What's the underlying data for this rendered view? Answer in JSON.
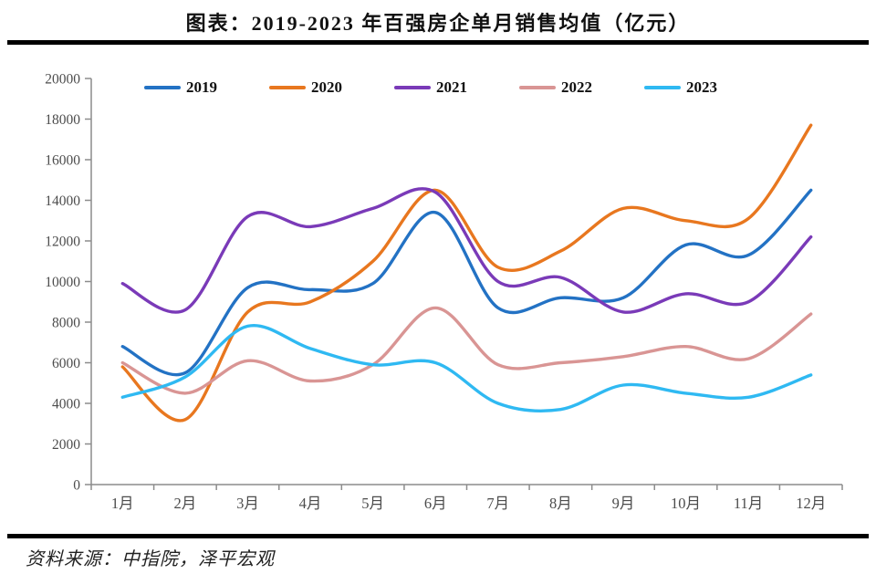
{
  "page": {
    "title": "图表：2019-2023 年百强房企单月销售均值（亿元）"
  },
  "source": {
    "text": "资料来源：中指院，泽平宏观"
  },
  "chart_data": {
    "type": "line",
    "title": "图表：2019-2023 年百强房企单月销售均值（亿元）",
    "unit": "亿元",
    "categories": [
      "1月",
      "2月",
      "3月",
      "4月",
      "5月",
      "6月",
      "7月",
      "8月",
      "9月",
      "10月",
      "11月",
      "12月"
    ],
    "xlabel": "",
    "ylabel": "",
    "ylim": [
      0,
      20000
    ],
    "ystep": 2000,
    "yticks": [
      0,
      2000,
      4000,
      6000,
      8000,
      10000,
      12000,
      14000,
      16000,
      18000,
      20000
    ],
    "grid": false,
    "legend_position": "top",
    "axis_color": "#8c8c8c",
    "tick_label_color": "#4c4c4c",
    "series": [
      {
        "name": "2019",
        "color": "#2372C4",
        "values": [
          6800,
          5500,
          9700,
          9600,
          9900,
          13400,
          8700,
          9200,
          9200,
          11800,
          11300,
          14500
        ]
      },
      {
        "name": "2020",
        "color": "#E8771F",
        "values": [
          5800,
          3200,
          8500,
          9000,
          11000,
          14500,
          10700,
          11500,
          13600,
          13000,
          13100,
          17700
        ]
      },
      {
        "name": "2021",
        "color": "#7A3AB8",
        "values": [
          9900,
          8600,
          13200,
          12700,
          13600,
          14400,
          10000,
          10200,
          8500,
          9400,
          9000,
          12200
        ]
      },
      {
        "name": "2022",
        "color": "#D99594",
        "values": [
          6000,
          4500,
          6100,
          5100,
          5900,
          8700,
          5900,
          6000,
          6300,
          6800,
          6200,
          8400
        ]
      },
      {
        "name": "2023",
        "color": "#2FB9F2",
        "values": [
          4300,
          5300,
          7800,
          6700,
          5900,
          6000,
          4000,
          3700,
          4900,
          4500,
          4300,
          5400
        ]
      }
    ]
  }
}
